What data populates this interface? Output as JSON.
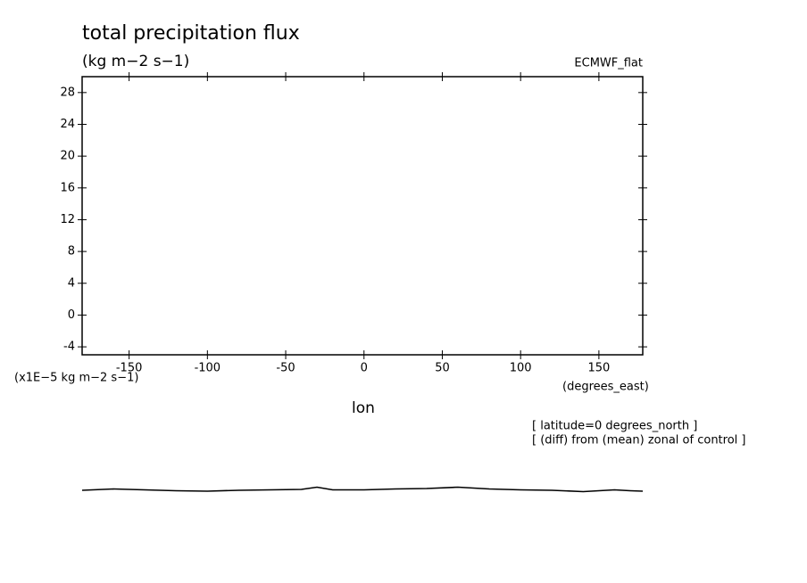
{
  "chart_data": {
    "type": "line",
    "title": "total precipitation flux",
    "subtitle": "(kg m−2 s−1)",
    "source_label": "ECMWF_flat",
    "y_unit_label": "(x1E−5 kg m−2 s−1)",
    "x_unit_label": "(degrees_east)",
    "x_label": "lon",
    "annotations": [
      "[ latitude=0 degrees_north ]",
      "[ (diff) from (mean) zonal of control ]"
    ],
    "x": [
      -180,
      -160,
      -140,
      -120,
      -100,
      -80,
      -60,
      -40,
      -30,
      -20,
      0,
      20,
      40,
      60,
      80,
      100,
      120,
      140,
      160,
      170,
      178
    ],
    "values": [
      -22.05,
      -21.88,
      -22.0,
      -22.11,
      -22.16,
      -22.05,
      -22.0,
      -21.94,
      -21.66,
      -22.0,
      -22.0,
      -21.88,
      -21.83,
      -21.66,
      -21.88,
      -22.0,
      -22.05,
      -22.22,
      -22.0,
      -22.11,
      -22.16
    ],
    "color": "#000000",
    "xlim": [
      -180,
      178
    ],
    "ylim": [
      -5,
      30
    ],
    "xticks": [
      -150,
      -100,
      -50,
      0,
      50,
      100,
      150
    ],
    "yticks": [
      -4,
      0,
      4,
      8,
      12,
      16,
      20,
      24,
      28
    ],
    "grid": false
  }
}
